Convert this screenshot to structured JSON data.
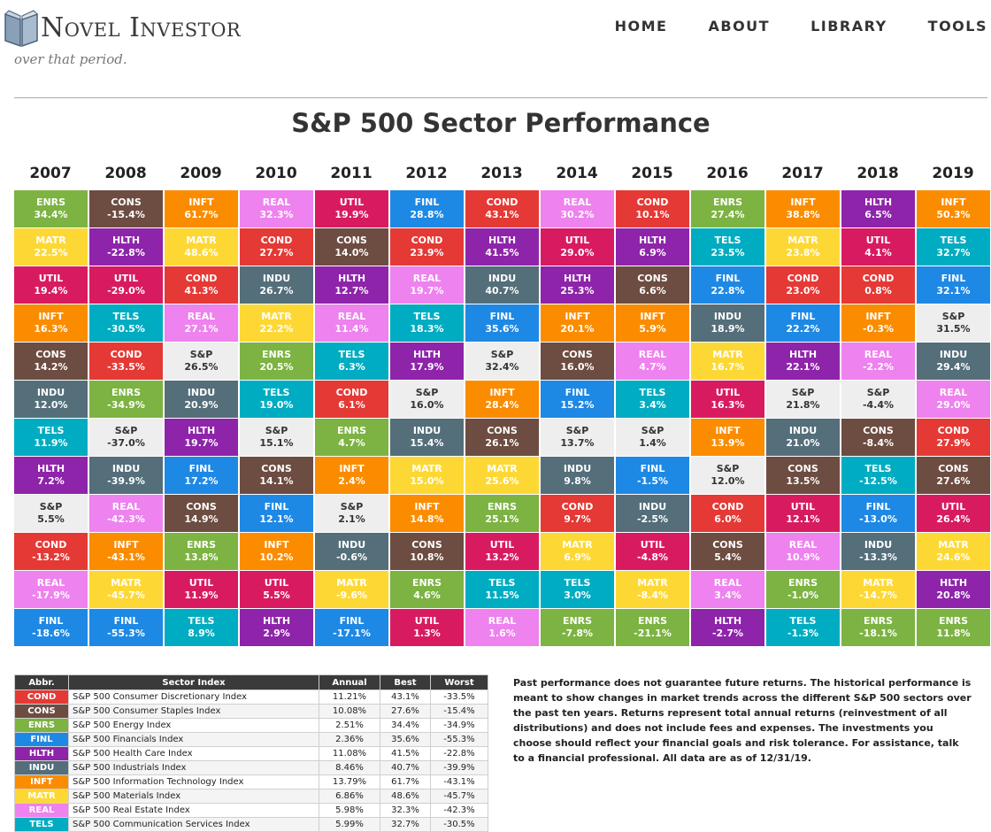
{
  "header": {
    "logo_text": "Novel Investor",
    "nav": [
      "HOME",
      "ABOUT",
      "LIBRARY",
      "TOOLS"
    ]
  },
  "intro_fragment": "over that period.",
  "chart_data": {
    "type": "table",
    "title": "S&P 500 Sector Performance",
    "years": [
      "2007",
      "2008",
      "2009",
      "2010",
      "2011",
      "2012",
      "2013",
      "2014",
      "2015",
      "2016",
      "2017",
      "2018",
      "2019"
    ],
    "columns": [
      [
        [
          "ENRS",
          "34.4%"
        ],
        [
          "MATR",
          "22.5%"
        ],
        [
          "UTIL",
          "19.4%"
        ],
        [
          "INFT",
          "16.3%"
        ],
        [
          "CONS",
          "14.2%"
        ],
        [
          "INDU",
          "12.0%"
        ],
        [
          "TELS",
          "11.9%"
        ],
        [
          "HLTH",
          "7.2%"
        ],
        [
          "S&P",
          "5.5%"
        ],
        [
          "COND",
          "-13.2%"
        ],
        [
          "REAL",
          "-17.9%"
        ],
        [
          "FINL",
          "-18.6%"
        ]
      ],
      [
        [
          "CONS",
          "-15.4%"
        ],
        [
          "HLTH",
          "-22.8%"
        ],
        [
          "UTIL",
          "-29.0%"
        ],
        [
          "TELS",
          "-30.5%"
        ],
        [
          "COND",
          "-33.5%"
        ],
        [
          "ENRS",
          "-34.9%"
        ],
        [
          "S&P",
          "-37.0%"
        ],
        [
          "INDU",
          "-39.9%"
        ],
        [
          "REAL",
          "-42.3%"
        ],
        [
          "INFT",
          "-43.1%"
        ],
        [
          "MATR",
          "-45.7%"
        ],
        [
          "FINL",
          "-55.3%"
        ]
      ],
      [
        [
          "INFT",
          "61.7%"
        ],
        [
          "MATR",
          "48.6%"
        ],
        [
          "COND",
          "41.3%"
        ],
        [
          "REAL",
          "27.1%"
        ],
        [
          "S&P",
          "26.5%"
        ],
        [
          "INDU",
          "20.9%"
        ],
        [
          "HLTH",
          "19.7%"
        ],
        [
          "FINL",
          "17.2%"
        ],
        [
          "CONS",
          "14.9%"
        ],
        [
          "ENRS",
          "13.8%"
        ],
        [
          "UTIL",
          "11.9%"
        ],
        [
          "TELS",
          "8.9%"
        ]
      ],
      [
        [
          "REAL",
          "32.3%"
        ],
        [
          "COND",
          "27.7%"
        ],
        [
          "INDU",
          "26.7%"
        ],
        [
          "MATR",
          "22.2%"
        ],
        [
          "ENRS",
          "20.5%"
        ],
        [
          "TELS",
          "19.0%"
        ],
        [
          "S&P",
          "15.1%"
        ],
        [
          "CONS",
          "14.1%"
        ],
        [
          "FINL",
          "12.1%"
        ],
        [
          "INFT",
          "10.2%"
        ],
        [
          "UTIL",
          "5.5%"
        ],
        [
          "HLTH",
          "2.9%"
        ]
      ],
      [
        [
          "UTIL",
          "19.9%"
        ],
        [
          "CONS",
          "14.0%"
        ],
        [
          "HLTH",
          "12.7%"
        ],
        [
          "REAL",
          "11.4%"
        ],
        [
          "TELS",
          "6.3%"
        ],
        [
          "COND",
          "6.1%"
        ],
        [
          "ENRS",
          "4.7%"
        ],
        [
          "INFT",
          "2.4%"
        ],
        [
          "S&P",
          "2.1%"
        ],
        [
          "INDU",
          "-0.6%"
        ],
        [
          "MATR",
          "-9.6%"
        ],
        [
          "FINL",
          "-17.1%"
        ]
      ],
      [
        [
          "FINL",
          "28.8%"
        ],
        [
          "COND",
          "23.9%"
        ],
        [
          "REAL",
          "19.7%"
        ],
        [
          "TELS",
          "18.3%"
        ],
        [
          "HLTH",
          "17.9%"
        ],
        [
          "S&P",
          "16.0%"
        ],
        [
          "INDU",
          "15.4%"
        ],
        [
          "MATR",
          "15.0%"
        ],
        [
          "INFT",
          "14.8%"
        ],
        [
          "CONS",
          "10.8%"
        ],
        [
          "ENRS",
          "4.6%"
        ],
        [
          "UTIL",
          "1.3%"
        ]
      ],
      [
        [
          "COND",
          "43.1%"
        ],
        [
          "HLTH",
          "41.5%"
        ],
        [
          "INDU",
          "40.7%"
        ],
        [
          "FINL",
          "35.6%"
        ],
        [
          "S&P",
          "32.4%"
        ],
        [
          "INFT",
          "28.4%"
        ],
        [
          "CONS",
          "26.1%"
        ],
        [
          "MATR",
          "25.6%"
        ],
        [
          "ENRS",
          "25.1%"
        ],
        [
          "UTIL",
          "13.2%"
        ],
        [
          "TELS",
          "11.5%"
        ],
        [
          "REAL",
          "1.6%"
        ]
      ],
      [
        [
          "REAL",
          "30.2%"
        ],
        [
          "UTIL",
          "29.0%"
        ],
        [
          "HLTH",
          "25.3%"
        ],
        [
          "INFT",
          "20.1%"
        ],
        [
          "CONS",
          "16.0%"
        ],
        [
          "FINL",
          "15.2%"
        ],
        [
          "S&P",
          "13.7%"
        ],
        [
          "INDU",
          "9.8%"
        ],
        [
          "COND",
          "9.7%"
        ],
        [
          "MATR",
          "6.9%"
        ],
        [
          "TELS",
          "3.0%"
        ],
        [
          "ENRS",
          "-7.8%"
        ]
      ],
      [
        [
          "COND",
          "10.1%"
        ],
        [
          "HLTH",
          "6.9%"
        ],
        [
          "CONS",
          "6.6%"
        ],
        [
          "INFT",
          "5.9%"
        ],
        [
          "REAL",
          "4.7%"
        ],
        [
          "TELS",
          "3.4%"
        ],
        [
          "S&P",
          "1.4%"
        ],
        [
          "FINL",
          "-1.5%"
        ],
        [
          "INDU",
          "-2.5%"
        ],
        [
          "UTIL",
          "-4.8%"
        ],
        [
          "MATR",
          "-8.4%"
        ],
        [
          "ENRS",
          "-21.1%"
        ]
      ],
      [
        [
          "ENRS",
          "27.4%"
        ],
        [
          "TELS",
          "23.5%"
        ],
        [
          "FINL",
          "22.8%"
        ],
        [
          "INDU",
          "18.9%"
        ],
        [
          "MATR",
          "16.7%"
        ],
        [
          "UTIL",
          "16.3%"
        ],
        [
          "INFT",
          "13.9%"
        ],
        [
          "S&P",
          "12.0%"
        ],
        [
          "COND",
          "6.0%"
        ],
        [
          "CONS",
          "5.4%"
        ],
        [
          "REAL",
          "3.4%"
        ],
        [
          "HLTH",
          "-2.7%"
        ]
      ],
      [
        [
          "INFT",
          "38.8%"
        ],
        [
          "MATR",
          "23.8%"
        ],
        [
          "COND",
          "23.0%"
        ],
        [
          "FINL",
          "22.2%"
        ],
        [
          "HLTH",
          "22.1%"
        ],
        [
          "S&P",
          "21.8%"
        ],
        [
          "INDU",
          "21.0%"
        ],
        [
          "CONS",
          "13.5%"
        ],
        [
          "UTIL",
          "12.1%"
        ],
        [
          "REAL",
          "10.9%"
        ],
        [
          "ENRS",
          "-1.0%"
        ],
        [
          "TELS",
          "-1.3%"
        ]
      ],
      [
        [
          "HLTH",
          "6.5%"
        ],
        [
          "UTIL",
          "4.1%"
        ],
        [
          "COND",
          "0.8%"
        ],
        [
          "INFT",
          "-0.3%"
        ],
        [
          "REAL",
          "-2.2%"
        ],
        [
          "S&P",
          "-4.4%"
        ],
        [
          "CONS",
          "-8.4%"
        ],
        [
          "TELS",
          "-12.5%"
        ],
        [
          "FINL",
          "-13.0%"
        ],
        [
          "INDU",
          "-13.3%"
        ],
        [
          "MATR",
          "-14.7%"
        ],
        [
          "ENRS",
          "-18.1%"
        ]
      ],
      [
        [
          "INFT",
          "50.3%"
        ],
        [
          "TELS",
          "32.7%"
        ],
        [
          "FINL",
          "32.1%"
        ],
        [
          "S&P",
          "31.5%"
        ],
        [
          "INDU",
          "29.4%"
        ],
        [
          "REAL",
          "29.0%"
        ],
        [
          "COND",
          "27.9%"
        ],
        [
          "CONS",
          "27.6%"
        ],
        [
          "UTIL",
          "26.4%"
        ],
        [
          "MATR",
          "24.6%"
        ],
        [
          "HLTH",
          "20.8%"
        ],
        [
          "ENRS",
          "11.8%"
        ]
      ]
    ]
  },
  "sector_colors": {
    "COND": "#e53935",
    "CONS": "#6d4c41",
    "ENRS": "#7cb342",
    "FINL": "#1e88e5",
    "HLTH": "#8e24aa",
    "INDU": "#546e7a",
    "INFT": "#fb8c00",
    "MATR": "#fdd835",
    "REAL": "#ee82ee",
    "TELS": "#00acc1",
    "UTIL": "#d81b60",
    "S&P": "#eeeeee"
  },
  "legend": {
    "headers": [
      "Abbr.",
      "Sector Index",
      "Annual",
      "Best",
      "Worst"
    ],
    "rows": [
      [
        "COND",
        "S&P 500 Consumer Discretionary Index",
        "11.21%",
        "43.1%",
        "-33.5%"
      ],
      [
        "CONS",
        "S&P 500 Consumer Staples Index",
        "10.08%",
        "27.6%",
        "-15.4%"
      ],
      [
        "ENRS",
        "S&P 500 Energy Index",
        "2.51%",
        "34.4%",
        "-34.9%"
      ],
      [
        "FINL",
        "S&P 500 Financials Index",
        "2.36%",
        "35.6%",
        "-55.3%"
      ],
      [
        "HLTH",
        "S&P 500 Health Care Index",
        "11.08%",
        "41.5%",
        "-22.8%"
      ],
      [
        "INDU",
        "S&P 500 Industrials Index",
        "8.46%",
        "40.7%",
        "-39.9%"
      ],
      [
        "INFT",
        "S&P 500 Information Technology Index",
        "13.79%",
        "61.7%",
        "-43.1%"
      ],
      [
        "MATR",
        "S&P 500 Materials Index",
        "6.86%",
        "48.6%",
        "-45.7%"
      ],
      [
        "REAL",
        "S&P 500 Real Estate Index",
        "5.98%",
        "32.3%",
        "-42.3%"
      ],
      [
        "TELS",
        "S&P 500 Communication Services Index",
        "5.99%",
        "32.7%",
        "-30.5%"
      ]
    ]
  },
  "disclaimer": "Past performance does not guarantee future returns. The historical performance is meant to show changes in market trends across the different S&P 500 sectors over the past ten years. Returns represent total annual returns (reinvestment of all distributions) and does not include fees and expenses. The investments you choose should reflect your financial goals and risk tolerance. For assistance, talk to a financial professional. All data are as of 12/31/19."
}
